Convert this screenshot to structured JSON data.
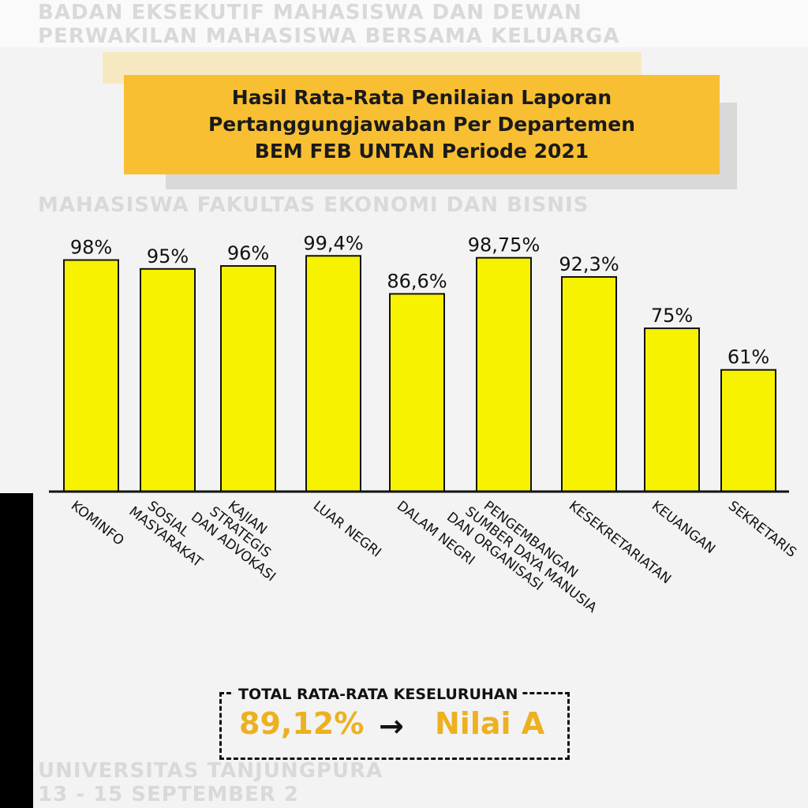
{
  "title_lines": [
    "Hasil Rata-Rata Penilaian Laporan",
    "Pertanggungjawaban Per Departemen",
    "BEM FEB UNTAN Periode 2021"
  ],
  "background_text": [
    "BADAN EKSEKUTIF MAHASISWA DAN DEWAN",
    "PERWAKILAN MAHASISWA BERSAMA KELUARGA",
    "MAHASISWA FAKULTAS EKONOMI DAN BISNIS",
    "UNIVERSITAS TANJUNGPURA",
    "13 - 15 SEPTEMBER 2"
  ],
  "chart_data": {
    "type": "bar",
    "title": "Hasil Rata-Rata Penilaian Laporan Pertanggungjawaban Per Departemen BEM FEB UNTAN Periode 2021",
    "categories": [
      "KOMINFO",
      "SOSIAL MASYARAKAT",
      "KAJIAN STRATEGIS DAN ADVOKASI",
      "LUAR NEGRI",
      "DALAM NEGRI",
      "PENGEMBANGAN SUMBER DAYA MANUSIA DAN ORGANISASI",
      "KESEKRETARIATAN",
      "KEUANGAN",
      "SEKRETARIS"
    ],
    "category_lines": [
      [
        "KOMINFO"
      ],
      [
        "SOSIAL",
        "MASYARAKAT"
      ],
      [
        "KAJIAN",
        "STRATEGIS",
        "DAN ADVOKASI"
      ],
      [
        "LUAR NEGRI"
      ],
      [
        "DALAM NEGRI"
      ],
      [
        "PENGEMBANGAN",
        "SUMBER DAYA MANUSIA",
        "DAN ORGANISASI"
      ],
      [
        "KESEKRETARIATAN"
      ],
      [
        "KEUANGAN"
      ],
      [
        "SEKRETARIS"
      ]
    ],
    "values": [
      98,
      95,
      96,
      99.4,
      86.6,
      98.75,
      92.3,
      75,
      61
    ],
    "data_labels": [
      "98%",
      "95%",
      "96%",
      "99,4%",
      "86,6%",
      "98,75%",
      "92,3%",
      "75%",
      "61%"
    ],
    "xlabel": "",
    "ylabel": "",
    "grid": false,
    "colors": {
      "bar": "#f7f200",
      "title_bg": "#f9bf33",
      "total": "#edb020"
    }
  },
  "total": {
    "label": "TOTAL RATA-RATA KESELURUHAN",
    "value": "89,12%",
    "arrow": "→",
    "grade": "Nilai A"
  }
}
